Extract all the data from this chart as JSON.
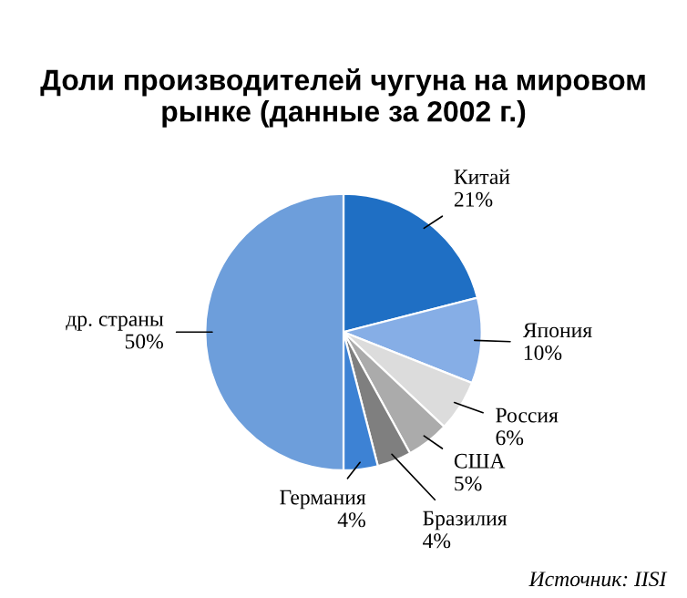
{
  "chart_data": {
    "type": "pie",
    "title": "Доли производителей чугуна на мировом\nрынке (данные за 2002 г.)",
    "categories": [
      "Китай",
      "Япония",
      "Россия",
      "США",
      "Бразилия",
      "Германия",
      "др. страны"
    ],
    "values": [
      21,
      10,
      6,
      5,
      4,
      4,
      50
    ],
    "value_labels": [
      "21%",
      "10%",
      "6%",
      "5%",
      "4%",
      "4%",
      "50%"
    ],
    "colors": [
      "#1f6fc4",
      "#86aee6",
      "#dcdcdc",
      "#ababab",
      "#7f7f7f",
      "#3d82d4",
      "#6d9edb"
    ],
    "annotations": [
      "Источник: IISI"
    ]
  }
}
